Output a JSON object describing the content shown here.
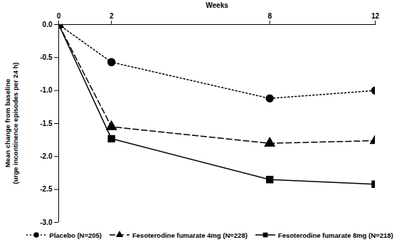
{
  "chart_data": {
    "type": "line",
    "x_label": "Weeks",
    "y_label": "Mean change from baseline\n(urge incontinence episodes per 24 h)",
    "x": [
      0,
      2,
      8,
      12
    ],
    "xlim": [
      0,
      12
    ],
    "xticks": [
      0,
      2,
      8,
      12
    ],
    "ylim": [
      -3,
      0
    ],
    "yticks": [
      {
        "value": -3,
        "label": "-3.0"
      },
      {
        "value": -2.5,
        "label": "-2.5"
      },
      {
        "value": -2,
        "label": "-2.0"
      },
      {
        "value": -1.5,
        "label": "-1.5"
      },
      {
        "value": -1,
        "label": "-1.0"
      },
      {
        "value": -0.5,
        "label": "-0.5"
      },
      {
        "value": 0,
        "label": "0.0"
      }
    ],
    "grid": false,
    "legend": "bottom",
    "series": [
      {
        "name": "Placebo (N=205)",
        "color": "#000000",
        "marker": "circle",
        "line_style": "dotted",
        "values": [
          0,
          -0.57,
          -1.12,
          -1.0
        ]
      },
      {
        "name": "Fesoterodine fumarate 4mg (N=228)",
        "color": "#000000",
        "marker": "triangle",
        "line_style": "dashed",
        "values": [
          0,
          -1.55,
          -1.8,
          -1.76
        ]
      },
      {
        "name": "Fesoterodine fumarate 8mg (N=218)",
        "color": "#000000",
        "marker": "square",
        "line_style": "solid",
        "values": [
          0,
          -1.73,
          -2.35,
          -2.42
        ]
      }
    ]
  }
}
